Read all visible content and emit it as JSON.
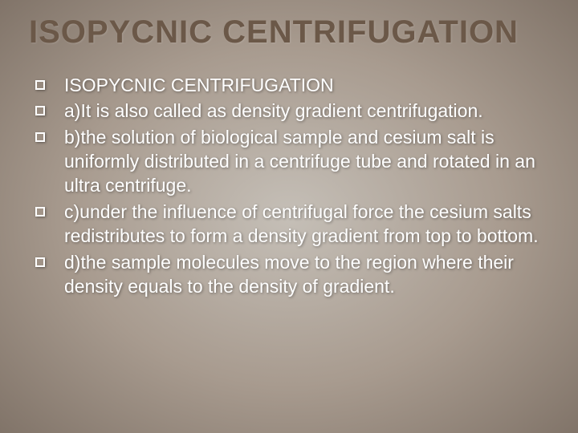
{
  "slide": {
    "title": "ISOPYCNIC CENTRIFUGATION",
    "title_color": "#6b5848",
    "title_fontsize": 40,
    "background_gradient": {
      "center_color": "#c5bfb7",
      "mid_color": "#a89b8f",
      "outer_color": "#4a3f37"
    },
    "body_text_color": "#ffffff",
    "body_fontsize": 23,
    "bullet_style": "hollow-square",
    "bullets": [
      "ISOPYCNIC CENTRIFUGATION",
      "a)It is also called as density gradient centrifugation.",
      "b)the solution of biological sample and cesium salt is uniformly distributed in a centrifuge tube and rotated in an ultra centrifuge.",
      "c)under the influence of centrifugal force the cesium salts redistributes to form a density gradient from top to bottom.",
      "d)the sample molecules move to the region where their density equals to the density of gradient."
    ]
  }
}
